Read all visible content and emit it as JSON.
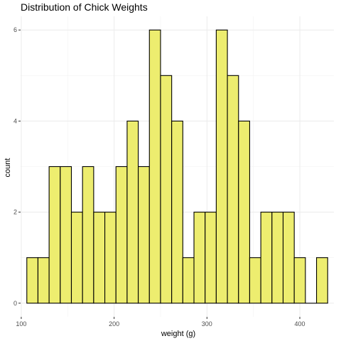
{
  "chart_data": {
    "type": "bar",
    "title": "Distribution of Chick Weights",
    "xlabel": "weight (g)",
    "ylabel": "count",
    "bin_width": 12,
    "bins": [
      {
        "start": 106,
        "end": 118,
        "count": 1
      },
      {
        "start": 118,
        "end": 130,
        "count": 1
      },
      {
        "start": 130,
        "end": 142,
        "count": 3
      },
      {
        "start": 142,
        "end": 154,
        "count": 3
      },
      {
        "start": 154,
        "end": 166,
        "count": 2
      },
      {
        "start": 166,
        "end": 178,
        "count": 3
      },
      {
        "start": 178,
        "end": 190,
        "count": 2
      },
      {
        "start": 190,
        "end": 202,
        "count": 2
      },
      {
        "start": 202,
        "end": 214,
        "count": 3
      },
      {
        "start": 214,
        "end": 226,
        "count": 4
      },
      {
        "start": 226,
        "end": 238,
        "count": 3
      },
      {
        "start": 238,
        "end": 250,
        "count": 6
      },
      {
        "start": 250,
        "end": 262,
        "count": 5
      },
      {
        "start": 262,
        "end": 274,
        "count": 4
      },
      {
        "start": 274,
        "end": 286,
        "count": 1
      },
      {
        "start": 286,
        "end": 298,
        "count": 2
      },
      {
        "start": 298,
        "end": 310,
        "count": 2
      },
      {
        "start": 310,
        "end": 322,
        "count": 6
      },
      {
        "start": 322,
        "end": 334,
        "count": 5
      },
      {
        "start": 334,
        "end": 346,
        "count": 4
      },
      {
        "start": 346,
        "end": 358,
        "count": 1
      },
      {
        "start": 358,
        "end": 370,
        "count": 2
      },
      {
        "start": 370,
        "end": 382,
        "count": 2
      },
      {
        "start": 382,
        "end": 394,
        "count": 2
      },
      {
        "start": 394,
        "end": 406,
        "count": 1
      },
      {
        "start": 406,
        "end": 418,
        "count": 0
      },
      {
        "start": 418,
        "end": 430,
        "count": 1
      }
    ],
    "xlim": [
      99.3,
      436.7
    ],
    "ylim": [
      -0.3,
      6.3
    ],
    "x_ticks": [
      100,
      200,
      300,
      400
    ],
    "y_ticks": [
      0,
      2,
      4,
      6
    ],
    "grid": true,
    "colors": {
      "bar_fill": "#eded6f",
      "bar_stroke": "#000000",
      "panel_bg": "#ffffff",
      "grid": "#ebebeb"
    }
  }
}
